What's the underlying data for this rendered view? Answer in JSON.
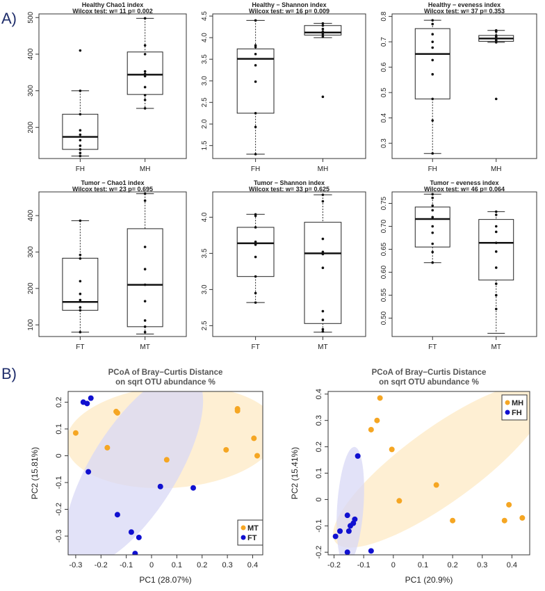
{
  "figure": {
    "label_a": "A)",
    "label_b": "B)"
  },
  "boxplots": [
    {
      "id": "box-healthy-chao1",
      "title": "Healthy Chao1 index",
      "subtitle": "Wilcox test: w= 11 p= 0.002",
      "ylim": [
        115,
        510
      ],
      "yticks": [
        200,
        300,
        400,
        500
      ],
      "groups": [
        {
          "name": "FH",
          "min": 122,
          "q1": 140,
          "median": 174,
          "q3": 236,
          "max": 300,
          "points": [
            410,
            300,
            236,
            192,
            180,
            165,
            150,
            140,
            130,
            122
          ]
        },
        {
          "name": "MH",
          "min": 252,
          "q1": 290,
          "median": 344,
          "q3": 406,
          "max": 498,
          "points": [
            498,
            424,
            400,
            353,
            346,
            340,
            310,
            288,
            275,
            252
          ]
        }
      ]
    },
    {
      "id": "box-healthy-shannon",
      "title": "Healthy − Shannon index",
      "subtitle": "Wilcox test: w= 16 p= 0.009",
      "ylim": [
        1.2,
        4.55
      ],
      "yticks": [
        1.5,
        2.0,
        2.5,
        3.0,
        3.5,
        4.0,
        4.5
      ],
      "groups": [
        {
          "name": "FH",
          "min": 1.3,
          "q1": 2.25,
          "median": 3.51,
          "q3": 3.74,
          "max": 4.4,
          "points": [
            4.4,
            3.82,
            3.78,
            3.62,
            3.36,
            2.98,
            2.25,
            1.93,
            1.3
          ]
        },
        {
          "name": "MH",
          "min": 4.0,
          "q1": 4.06,
          "median": 4.12,
          "q3": 4.28,
          "max": 4.33,
          "points": [
            4.33,
            4.28,
            4.2,
            4.14,
            4.1,
            4.06,
            4.02,
            2.63
          ]
        }
      ]
    },
    {
      "id": "box-healthy-eveness",
      "title": "Healthy − eveness index",
      "subtitle": "Wilcox test: w= 37 p= 0.353",
      "ylim": [
        0.24,
        0.81
      ],
      "yticks": [
        0.3,
        0.4,
        0.5,
        0.6,
        0.7,
        0.8
      ],
      "groups": [
        {
          "name": "FH",
          "min": 0.26,
          "q1": 0.475,
          "median": 0.652,
          "q3": 0.752,
          "max": 0.785,
          "points": [
            0.785,
            0.77,
            0.73,
            0.7,
            0.677,
            0.628,
            0.572,
            0.475,
            0.39,
            0.26
          ]
        },
        {
          "name": "MH",
          "min": 0.698,
          "q1": 0.702,
          "median": 0.713,
          "q3": 0.725,
          "max": 0.745,
          "points": [
            0.745,
            0.74,
            0.725,
            0.72,
            0.714,
            0.71,
            0.705,
            0.698,
            0.475
          ]
        }
      ]
    },
    {
      "id": "box-tumor-chao1",
      "title": "Tumor − Chao1 index",
      "subtitle": "Wilcox test: w= 23 p= 0.695",
      "ylim": [
        68,
        465
      ],
      "yticks": [
        100,
        200,
        300,
        400
      ],
      "groups": [
        {
          "name": "FT",
          "min": 80,
          "q1": 140,
          "median": 163,
          "q3": 283,
          "max": 386,
          "points": [
            386,
            292,
            282,
            220,
            185,
            168,
            148,
            140,
            80
          ]
        },
        {
          "name": "MT",
          "min": 75,
          "q1": 95,
          "median": 210,
          "q3": 364,
          "max": 460,
          "points": [
            460,
            441,
            314,
            253,
            210,
            165,
            112,
            95,
            80
          ]
        }
      ]
    },
    {
      "id": "box-tumor-shannon",
      "title": "Tumor − Shannon index",
      "subtitle": "Wilcox test: w= 33 p= 0.625",
      "ylim": [
        2.35,
        4.35
      ],
      "yticks": [
        2.5,
        3.0,
        3.5,
        4.0
      ],
      "groups": [
        {
          "name": "FT",
          "min": 2.82,
          "q1": 3.18,
          "median": 3.64,
          "q3": 3.86,
          "max": 4.04,
          "points": [
            4.04,
            4.02,
            3.86,
            3.66,
            3.62,
            3.45,
            3.18,
            2.95,
            2.82
          ]
        },
        {
          "name": "MT",
          "min": 2.41,
          "q1": 2.53,
          "median": 3.5,
          "q3": 3.93,
          "max": 4.31,
          "points": [
            4.31,
            4.22,
            3.7,
            3.52,
            3.49,
            3.3,
            2.7,
            2.58,
            2.45,
            2.42
          ]
        }
      ]
    },
    {
      "id": "box-tumor-eveness",
      "title": "Tumor − eveness index",
      "subtitle": "Wilcox test: w= 46 p= 0.064",
      "ylim": [
        0.46,
        0.775
      ],
      "yticks": [
        0.5,
        0.55,
        0.6,
        0.65,
        0.7,
        0.75
      ],
      "groups": [
        {
          "name": "FT",
          "min": 0.621,
          "q1": 0.655,
          "median": 0.716,
          "q3": 0.742,
          "max": 0.77,
          "points": [
            0.77,
            0.762,
            0.745,
            0.735,
            0.72,
            0.7,
            0.686,
            0.662,
            0.644,
            0.621
          ]
        },
        {
          "name": "MT",
          "min": 0.467,
          "q1": 0.583,
          "median": 0.664,
          "q3": 0.715,
          "max": 0.732,
          "points": [
            0.732,
            0.725,
            0.7,
            0.688,
            0.664,
            0.645,
            0.61,
            0.575,
            0.55,
            0.52
          ]
        }
      ]
    }
  ],
  "pcoa": [
    {
      "id": "pcoa-tumor",
      "title_line1": "PCoA of Bray−Curtis Distance",
      "title_line2": "on sqrt OTU abundance %",
      "xlabel": "PC1 (28.07%)",
      "ylabel": "PC2 (15.81%)",
      "xlim": [
        -0.33,
        0.44
      ],
      "ylim": [
        -0.37,
        0.24
      ],
      "xticks": [
        -0.3,
        -0.2,
        -0.1,
        0.0,
        0.1,
        0.2,
        0.3,
        0.4
      ],
      "yticks": [
        -0.3,
        -0.2,
        -0.1,
        0.0,
        0.1,
        0.2
      ],
      "series": [
        {
          "name": "MT",
          "color": "#f5a623",
          "ellipse_color": "#fde9c4",
          "ellipse": {
            "cx": 0.08,
            "cy": 0.07,
            "rx": 0.42,
            "ry": 0.19,
            "angle": -4
          },
          "points": [
            [
              -0.3,
              0.085
            ],
            [
              -0.14,
              0.165
            ],
            [
              -0.135,
              0.16
            ],
            [
              -0.175,
              0.03
            ],
            [
              0.06,
              -0.015
            ],
            [
              0.295,
              0.022
            ],
            [
              0.34,
              0.175
            ],
            [
              0.34,
              0.168
            ],
            [
              0.405,
              0.065
            ],
            [
              0.418,
              0.0
            ]
          ]
        },
        {
          "name": "FT",
          "color": "#1010d0",
          "ellipse_color": "#d8d8f6",
          "ellipse": {
            "cx": -0.07,
            "cy": -0.05,
            "rx": 0.44,
            "ry": 0.16,
            "angle": -58
          },
          "points": [
            [
              -0.27,
              0.2
            ],
            [
              -0.255,
              0.195
            ],
            [
              -0.24,
              0.215
            ],
            [
              -0.25,
              -0.06
            ],
            [
              -0.135,
              -0.22
            ],
            [
              0.035,
              -0.115
            ],
            [
              0.165,
              -0.12
            ],
            [
              -0.08,
              -0.285
            ],
            [
              -0.05,
              -0.305
            ],
            [
              -0.065,
              -0.365
            ]
          ]
        }
      ]
    },
    {
      "id": "pcoa-healthy",
      "title_line1": "PCoA of Bray−Curtis Distance",
      "title_line2": "on sqrt OTU abundance %",
      "xlabel": "PC1 (20.9%)",
      "ylabel": "PC2 (15.41%)",
      "xlim": [
        -0.22,
        0.46
      ],
      "ylim": [
        -0.21,
        0.41
      ],
      "xticks": [
        -0.2,
        -0.1,
        0.0,
        0.1,
        0.2,
        0.3,
        0.4
      ],
      "yticks": [
        -0.2,
        -0.1,
        0.0,
        0.1,
        0.2,
        0.3,
        0.4
      ],
      "series": [
        {
          "name": "MH",
          "color": "#f5a623",
          "ellipse_color": "#fde9c4",
          "ellipse": {
            "cx": 0.16,
            "cy": 0.13,
            "rx": 0.44,
            "ry": 0.14,
            "angle": -36
          },
          "points": [
            [
              -0.045,
              0.385
            ],
            [
              -0.055,
              0.3
            ],
            [
              -0.075,
              0.265
            ],
            [
              -0.005,
              0.19
            ],
            [
              0.145,
              0.055
            ],
            [
              0.02,
              -0.005
            ],
            [
              0.2,
              -0.08
            ],
            [
              0.39,
              -0.02
            ],
            [
              0.375,
              -0.08
            ],
            [
              0.435,
              -0.07
            ]
          ]
        },
        {
          "name": "FH",
          "color": "#1010d0",
          "ellipse_color": "#d8d8f6",
          "ellipse": {
            "cx": -0.145,
            "cy": -0.025,
            "rx": 0.2,
            "ry": 0.05,
            "angle": -86
          },
          "points": [
            [
              -0.12,
              0.165
            ],
            [
              -0.155,
              -0.06
            ],
            [
              -0.13,
              -0.075
            ],
            [
              -0.135,
              -0.09
            ],
            [
              -0.145,
              -0.1
            ],
            [
              -0.18,
              -0.12
            ],
            [
              -0.195,
              -0.14
            ],
            [
              -0.15,
              -0.12
            ],
            [
              -0.155,
              -0.2
            ],
            [
              -0.075,
              -0.195
            ]
          ]
        }
      ]
    }
  ]
}
